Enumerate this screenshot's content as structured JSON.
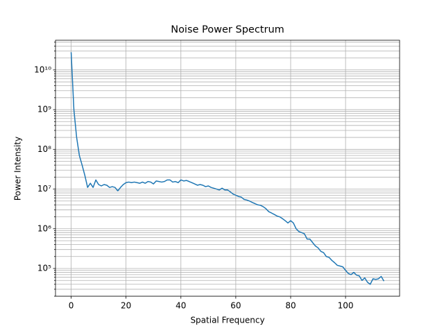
{
  "chart_data": {
    "type": "line",
    "title": "Noise Power Spectrum",
    "x_label": "Spatial Frequency",
    "y_label": "Power Intensity",
    "color": "#1f77b4",
    "log_y": true,
    "grid": true,
    "x": [
      0,
      1,
      2,
      3,
      4,
      5,
      6,
      7,
      8,
      9,
      10,
      11,
      12,
      13,
      14,
      15,
      16,
      17,
      18,
      19,
      20,
      21,
      22,
      23,
      24,
      25,
      26,
      27,
      28,
      29,
      30,
      31,
      32,
      33,
      34,
      35,
      36,
      37,
      38,
      39,
      40,
      41,
      42,
      43,
      44,
      45,
      46,
      47,
      48,
      49,
      50,
      51,
      52,
      53,
      54,
      55,
      56,
      57,
      58,
      59,
      60,
      61,
      62,
      63,
      64,
      65,
      66,
      67,
      68,
      69,
      70,
      71,
      72,
      73,
      74,
      75,
      76,
      77,
      78,
      79,
      80,
      81,
      82,
      83,
      84,
      85,
      86,
      87,
      88,
      89,
      90,
      91,
      92,
      93,
      94,
      95,
      96,
      97,
      98,
      99,
      100,
      101,
      102,
      103,
      104,
      105,
      106,
      107,
      108,
      109,
      110,
      111,
      112,
      113,
      114
    ],
    "values": [
      28000000000.0,
      1000000000.0,
      200000000.0,
      70000000.0,
      40000000.0,
      22000000.0,
      11000000.0,
      14000000.0,
      11000000.0,
      17000000.0,
      13000000.0,
      12000000.0,
      13000000.0,
      12500000.0,
      11000000.0,
      11500000.0,
      11000000.0,
      9000000.0,
      11000000.0,
      13000000.0,
      14500000.0,
      15000000.0,
      14500000.0,
      15000000.0,
      14500000.0,
      14000000.0,
      15000000.0,
      14000000.0,
      15500000.0,
      15000000.0,
      13500000.0,
      16000000.0,
      15500000.0,
      15000000.0,
      15500000.0,
      17000000.0,
      17000000.0,
      15000000.0,
      15500000.0,
      14500000.0,
      17000000.0,
      16000000.0,
      16500000.0,
      15500000.0,
      14500000.0,
      13500000.0,
      12500000.0,
      13000000.0,
      12500000.0,
      11500000.0,
      12000000.0,
      11000000.0,
      10500000.0,
      10000000.0,
      9500000.0,
      10500000.0,
      9500000.0,
      9500000.0,
      8500000.0,
      7500000.0,
      7000000.0,
      6500000.0,
      6300000.0,
      5500000.0,
      5300000.0,
      5000000.0,
      4600000.0,
      4300000.0,
      4000000.0,
      3900000.0,
      3600000.0,
      3200000.0,
      2700000.0,
      2500000.0,
      2300000.0,
      2100000.0,
      2000000.0,
      1800000.0,
      1600000.0,
      1400000.0,
      1600000.0,
      1400000.0,
      1000000.0,
      850000.0,
      800000.0,
      750000.0,
      550000.0,
      550000.0,
      450000.0,
      370000.0,
      330000.0,
      270000.0,
      250000.0,
      200000.0,
      190000.0,
      160000.0,
      140000.0,
      120000.0,
      115000.0,
      110000.0,
      90000.0,
      75000.0,
      70000.0,
      80000.0,
      68000.0,
      65000.0,
      50000.0,
      58000.0,
      45000.0,
      40000.0,
      55000.0,
      53000.0,
      55000.0,
      63000.0,
      48000.0
    ],
    "xlim": [
      -5.7,
      119.7
    ],
    "xticks": [
      0,
      20,
      40,
      60,
      80,
      100
    ],
    "ylim": [
      20000.0,
      56000000000.0
    ],
    "yticks": [
      {
        "value": 100000.0,
        "label": "10⁵"
      },
      {
        "value": 1000000.0,
        "label": "10⁶"
      },
      {
        "value": 10000000.0,
        "label": "10⁷"
      },
      {
        "value": 100000000.0,
        "label": "10⁸"
      },
      {
        "value": 1000000000.0,
        "label": "10⁹"
      },
      {
        "value": 10000000000.0,
        "label": "10¹⁰"
      }
    ],
    "yticks_minor": [
      20000.0,
      30000.0,
      40000.0,
      50000.0,
      60000.0,
      70000.0,
      80000.0,
      90000.0,
      200000.0,
      300000.0,
      400000.0,
      500000.0,
      600000.0,
      700000.0,
      800000.0,
      900000.0,
      2000000.0,
      3000000.0,
      4000000.0,
      5000000.0,
      6000000.0,
      7000000.0,
      8000000.0,
      9000000.0,
      20000000.0,
      30000000.0,
      40000000.0,
      50000000.0,
      60000000.0,
      70000000.0,
      80000000.0,
      90000000.0,
      200000000.0,
      300000000.0,
      400000000.0,
      500000000.0,
      600000000.0,
      700000000.0,
      800000000.0,
      900000000.0,
      2000000000.0,
      3000000000.0,
      4000000000.0,
      5000000000.0,
      6000000000.0,
      7000000000.0,
      8000000000.0,
      9000000000.0,
      20000000000.0,
      30000000000.0,
      40000000000.0,
      50000000000.0
    ]
  }
}
